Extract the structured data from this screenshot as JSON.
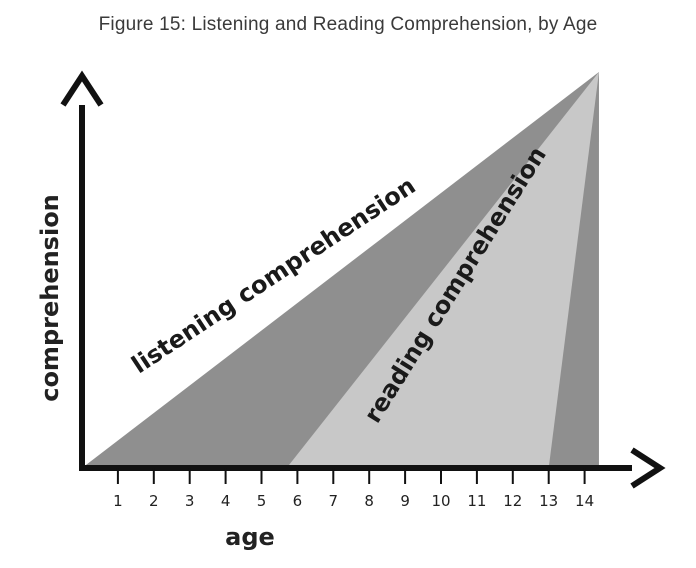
{
  "title": "Figure 15: Listening and Reading Comprehension, by Age",
  "chart_data": {
    "type": "area",
    "title": "Figure 15: Listening and Reading Comprehension, by Age",
    "xlabel": "age",
    "ylabel": "comprehension",
    "xlim": [
      0,
      15
    ],
    "grid": false,
    "x_ticks": [
      "1",
      "2",
      "3",
      "4",
      "5",
      "6",
      "7",
      "8",
      "9",
      "10",
      "11",
      "12",
      "13",
      "14"
    ],
    "series": [
      {
        "name": "listening comprehension",
        "color": "#8f8f8f",
        "points": [
          [
            0,
            0
          ],
          [
            14.4,
            100
          ]
        ]
      },
      {
        "name": "reading comprehension",
        "color": "#c8c8c8",
        "points": [
          [
            5.7,
            0
          ],
          [
            14.4,
            100
          ],
          [
            13,
            0
          ]
        ]
      }
    ]
  }
}
